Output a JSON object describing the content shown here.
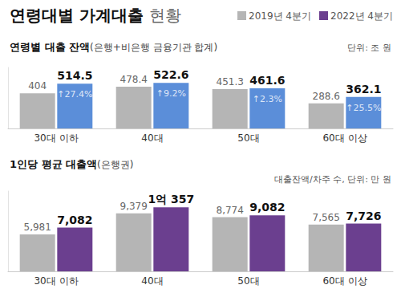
{
  "header": {
    "title": "연령대별 가계대출",
    "title_suffix": "현황"
  },
  "chart_data": [
    {
      "type": "bar",
      "title": "연령별 대출 잔액",
      "subtitle": "(은행+비은행 금융기관 합계)",
      "unit_note": "단위: 조 원",
      "categories": [
        "30대 이하",
        "40대",
        "50대",
        "60대 이상"
      ],
      "series": [
        {
          "name": "2019년 4분기",
          "color": "#b5b5b5",
          "values": [
            404,
            478.4,
            451.3,
            288.6
          ]
        },
        {
          "name": "2022년 4분기",
          "color": "#5b8ed9",
          "values": [
            514.5,
            522.6,
            461.6,
            362.1
          ],
          "annotations": [
            "↑27.4%",
            "↑9.2%",
            "↑2.3%",
            "↑25.5%"
          ]
        }
      ],
      "ylim": [
        0,
        700
      ],
      "grid": false,
      "data_labels": true,
      "tick_labels": "x"
    },
    {
      "type": "bar",
      "title": "1인당 평균 대출액",
      "subtitle": "(은행권)",
      "unit_note": "대출잔액/차주 수, 단위: 만 원",
      "categories": [
        "30대 이하",
        "40대",
        "50대",
        "60대 이상"
      ],
      "series": [
        {
          "name": "2019년 4분기",
          "color": "#b5b5b5",
          "values": [
            5981,
            9379,
            8774,
            7565
          ],
          "value_labels": [
            "5,981",
            "9,379",
            "8,774",
            "7,565"
          ]
        },
        {
          "name": "2022년 4분기",
          "color": "#6b3f8f",
          "values": [
            7082,
            10357,
            9082,
            7726
          ],
          "value_labels": [
            "7,082",
            "1억 357",
            "9,082",
            "7,726"
          ]
        }
      ],
      "ylim": [
        0,
        13000
      ],
      "grid": false,
      "data_labels": true,
      "tick_labels": "x",
      "legend": "top-right"
    }
  ]
}
